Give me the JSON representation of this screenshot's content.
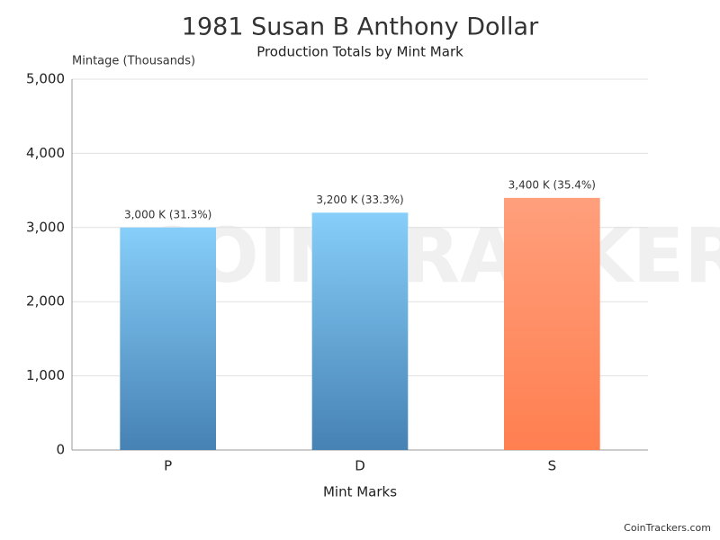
{
  "chart_data": {
    "type": "bar",
    "title": "1981 Susan B Anthony Dollar",
    "subtitle": "Production Totals by Mint Mark",
    "y_axis_label": "Mintage (Thousands)",
    "x_axis_label": "Mint Marks",
    "categories": [
      "P",
      "D",
      "S"
    ],
    "values": [
      3000,
      3200,
      3400
    ],
    "value_labels": [
      "3,000 K (31.3%)",
      "3,200 K (33.3%)",
      "3,400 K (35.4%)"
    ],
    "colors": [
      "#4682b4",
      "#4682b4",
      "#ff7f50"
    ],
    "ylim": [
      0,
      5000
    ],
    "yticks": [
      0,
      {
        "value": 1000,
        "label": "1,000"
      },
      {
        "value": 2000,
        "label": "2,000"
      },
      {
        "value": 3000,
        "label": "3,000"
      },
      {
        "value": 4000,
        "label": "4,000"
      },
      {
        "value": 5000,
        "label": "5,000"
      }
    ],
    "grid": true,
    "watermark": "COINTRACKERS",
    "credits": "CoinTrackers.com"
  }
}
